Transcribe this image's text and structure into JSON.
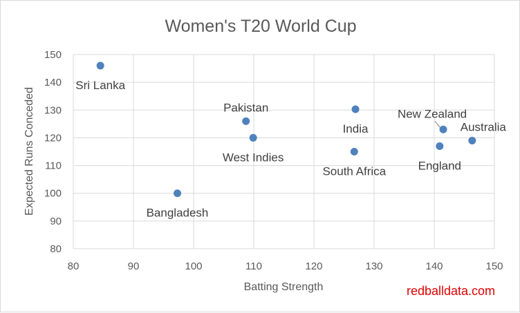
{
  "chart_data": {
    "type": "scatter",
    "title": "Women's T20 World Cup",
    "xlabel": "Batting Strength",
    "ylabel": "Expected Runs Conceded",
    "xlim": [
      80,
      150
    ],
    "ylim": [
      80,
      150
    ],
    "x_ticks": [
      80,
      90,
      100,
      110,
      120,
      130,
      140,
      150
    ],
    "y_ticks": [
      80,
      90,
      100,
      110,
      120,
      130,
      140,
      150
    ],
    "grid": true,
    "legend": "none",
    "points": [
      {
        "label": "Sri Lanka",
        "x": 84.5,
        "y": 146,
        "label_pos": "below"
      },
      {
        "label": "Bangladesh",
        "x": 97.3,
        "y": 100,
        "label_pos": "below"
      },
      {
        "label": "Pakistan",
        "x": 108.7,
        "y": 126,
        "label_pos": "above"
      },
      {
        "label": "West Indies",
        "x": 109.9,
        "y": 120,
        "label_pos": "below"
      },
      {
        "label": "India",
        "x": 126.9,
        "y": 130.3,
        "label_pos": "below"
      },
      {
        "label": "South Africa",
        "x": 126.7,
        "y": 115,
        "label_pos": "below"
      },
      {
        "label": "New Zealand",
        "x": 141.5,
        "y": 123,
        "label_pos": "above-left"
      },
      {
        "label": "England",
        "x": 140.9,
        "y": 117,
        "label_pos": "below"
      },
      {
        "label": "Australia",
        "x": 146.3,
        "y": 119,
        "label_pos": "above"
      }
    ],
    "marker_color": "#4f81bd"
  },
  "watermark": "redballdata.com",
  "colors": {
    "text": "#595959",
    "grid": "#d9d9d9",
    "watermark": "#e00000"
  }
}
